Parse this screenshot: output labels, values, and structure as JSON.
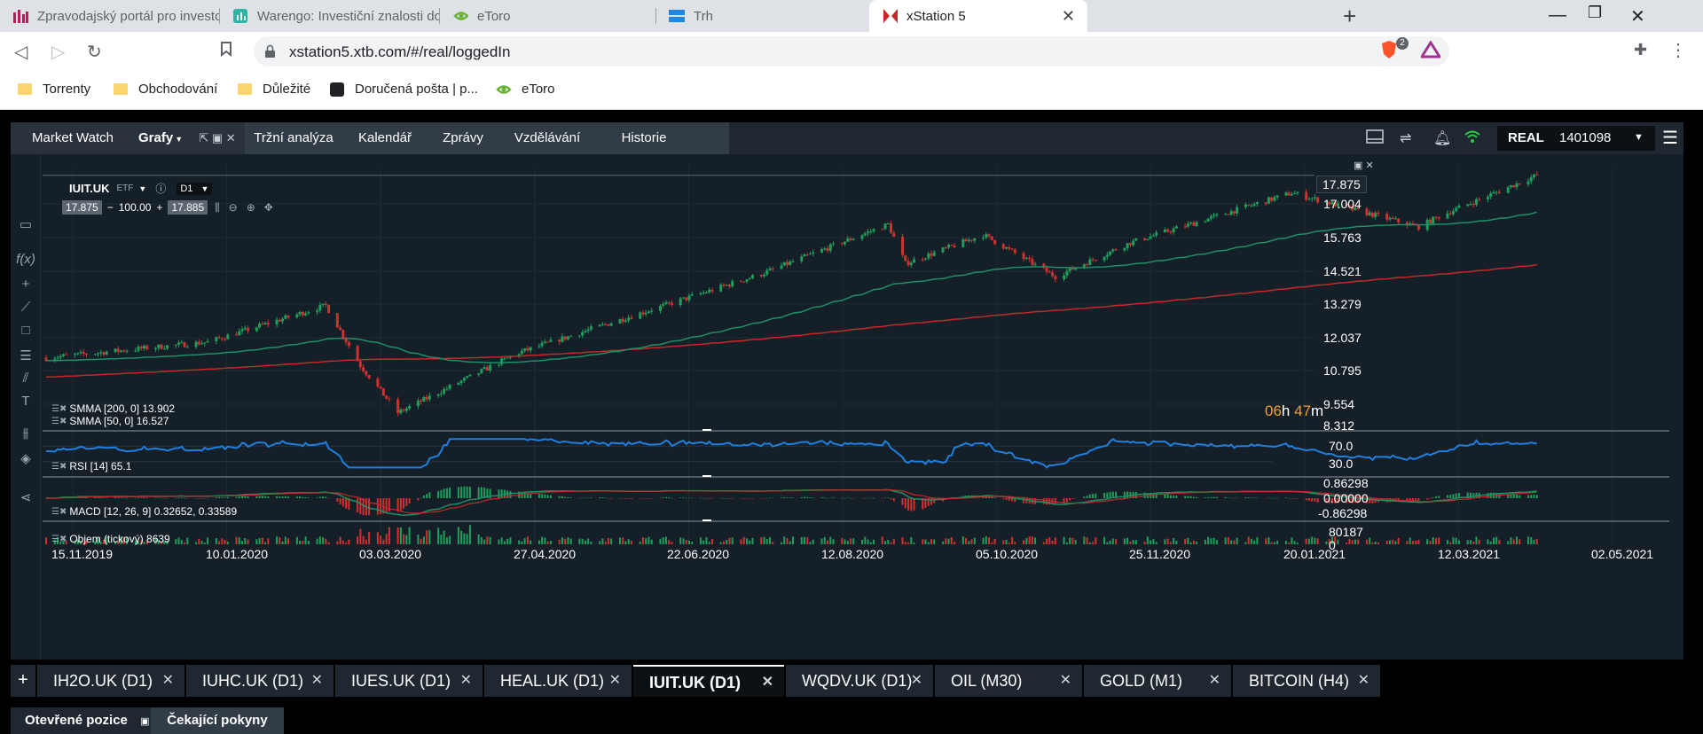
{
  "browser": {
    "tabs": [
      {
        "title": "Zpravodajský portál pro investory | Inv",
        "icon": "bar-chart-icon",
        "color": "#c2185b"
      },
      {
        "title": "Warengo: Investiční znalosti dostupné",
        "icon": "chart-box-icon",
        "color": "#2bb3a3"
      },
      {
        "title": "eToro",
        "icon": "etoro-icon",
        "color": "#6cb33e"
      },
      {
        "title": "Trh",
        "icon": "flag-icon",
        "color": "#1e88e5"
      },
      {
        "title": "xStation 5",
        "icon": "xtb-icon",
        "color": "#c62828",
        "active": true
      }
    ],
    "url": "xstation5.xtb.com/#/real/loggedIn",
    "extensions": {
      "brave_badge": "2"
    },
    "bookmarks": [
      "Torrenty",
      "Obchodování",
      "Důležité",
      "Doručená pošta | p...",
      "eToro"
    ]
  },
  "app": {
    "nav": [
      "Market Watch",
      "Grafy",
      "Tržní analýza",
      "Kalendář",
      "Zprávy",
      "Vzdělávání",
      "Historie"
    ],
    "account": {
      "type": "REAL",
      "number": "1401098"
    },
    "chart": {
      "symbol": "IUIT.UK",
      "asset_class": "ETF",
      "interval": "D1",
      "bid": "17.875",
      "volume": "100.00",
      "ask": "17.885",
      "last_price": "17.875",
      "countdown_h": "06",
      "countdown_m": "47",
      "countdown_h_unit": "h",
      "countdown_m_unit": "m",
      "indicators": {
        "smma200": "SMMA [200, 0] 13.902",
        "smma50": "SMMA [50, 0] 16.527",
        "rsi": "RSI [14] 65.1",
        "macd": "MACD [12, 26, 9] 0.32652, 0.33589",
        "volume": "Objem (tickový) 8639"
      }
    },
    "bottom_tabs": [
      "IH2O.UK (D1)",
      "IUHC.UK (D1)",
      "IUES.UK (D1)",
      "HEAL.UK (D1)",
      "IUIT.UK (D1)",
      "WQDV.UK (D1)",
      "OIL (M30)",
      "GOLD (M1)",
      "BITCOIN (H4)"
    ],
    "active_bottom_tab": 4,
    "positions_tabs": [
      "Otevřené pozice",
      "Čekající pokyny"
    ]
  },
  "chart_data": {
    "type": "candlestick",
    "x_ticks": [
      "15.11.2019",
      "10.01.2020",
      "03.03.2020",
      "27.04.2020",
      "22.06.2020",
      "12.08.2020",
      "05.10.2020",
      "25.11.2020",
      "20.01.2021",
      "12.03.2021",
      "02.05.2021"
    ],
    "y_ticks": [
      "17.004",
      "15.763",
      "14.521",
      "13.279",
      "12.037",
      "10.795",
      "9.554",
      "8.312"
    ],
    "ylim": [
      8.312,
      18.0
    ],
    "rsi_ticks": [
      "70.0",
      "30.0"
    ],
    "macd_ticks": [
      "0.86298",
      "0.00000",
      "-0.86298"
    ],
    "volume_ticks": [
      "80187",
      "0"
    ],
    "close_anchors": [
      {
        "date": "15.11.2019",
        "close": 10.9
      },
      {
        "date": "10.01.2020",
        "close": 11.5
      },
      {
        "date": "20.02.2020",
        "close": 12.9
      },
      {
        "date": "03.03.2020",
        "close": 10.6
      },
      {
        "date": "16.03.2020",
        "close": 8.8
      },
      {
        "date": "27.04.2020",
        "close": 11.1
      },
      {
        "date": "22.06.2020",
        "close": 13.1
      },
      {
        "date": "20.07.2020",
        "close": 14.1
      },
      {
        "date": "02.09.2020",
        "close": 16.0
      },
      {
        "date": "08.09.2020",
        "close": 14.5
      },
      {
        "date": "05.10.2020",
        "close": 15.6
      },
      {
        "date": "30.10.2020",
        "close": 14.0
      },
      {
        "date": "25.11.2020",
        "close": 15.3
      },
      {
        "date": "20.01.2021",
        "close": 17.2
      },
      {
        "date": "05.03.2021",
        "close": 15.9
      },
      {
        "date": "12.03.2021",
        "close": 16.3
      },
      {
        "date": "15.04.2021",
        "close": 17.875
      }
    ],
    "colors": {
      "up": "#1e9e5c",
      "down": "#d32f2f",
      "smma50": "#1e8f68",
      "smma200": "#c62828",
      "rsi": "#1e7fe0"
    }
  }
}
